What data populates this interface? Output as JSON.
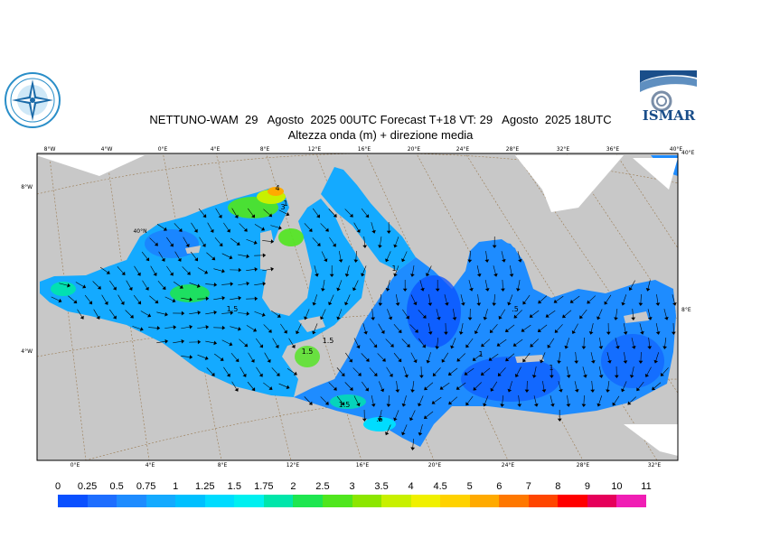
{
  "title": {
    "line1": "NETTUNO-WAM  29   Agosto  2025 00UTC Forecast T+18 VT: 29   Agosto  2025 18UTC",
    "line2": "Altezza onda (m) + direzione media"
  },
  "logos": {
    "left": "compass-rose-logo",
    "right": {
      "icon": "ismar-logo",
      "text": "ISMAR"
    }
  },
  "map": {
    "land_color": "#c8c8c8",
    "graticule_color": "#9a7a50",
    "top_ticks": [
      "8°W",
      "4°W",
      "0°E",
      "4°E",
      "8°E",
      "12°E",
      "16°E",
      "20°E",
      "24°E",
      "28°E",
      "32°E",
      "36°E",
      "40°E"
    ],
    "bottom_ticks": [
      "0°E",
      "4°E",
      "8°E",
      "12°E",
      "16°E",
      "20°E",
      "24°E",
      "28°E",
      "32°E"
    ],
    "left_ticks": [
      "8°W",
      "40°N",
      "4°W"
    ],
    "right_ticks": [
      "40°E",
      "8°E"
    ],
    "contour_labels": [
      "1.5",
      "1.5",
      "1.5",
      "1.5",
      "1",
      "1",
      "1",
      ".5",
      ".5",
      "1",
      "4",
      "3"
    ]
  },
  "legend": {
    "labels": [
      "0",
      "0.25",
      "0.5",
      "0.75",
      "1",
      "1.25",
      "1.5",
      "1.75",
      "2",
      "2.5",
      "3",
      "3.5",
      "4",
      "4.5",
      "5",
      "6",
      "7",
      "8",
      "9",
      "10",
      "11"
    ],
    "colors": [
      "#0a50ff",
      "#1e6eff",
      "#1e8cff",
      "#14aaff",
      "#00c0ff",
      "#00dcff",
      "#00f0f0",
      "#00e6aa",
      "#1ee650",
      "#50e61e",
      "#8ce600",
      "#c8f000",
      "#f0f000",
      "#ffd200",
      "#ffaa00",
      "#ff7800",
      "#ff4600",
      "#ff0000",
      "#e6005a",
      "#f01eb4"
    ]
  }
}
